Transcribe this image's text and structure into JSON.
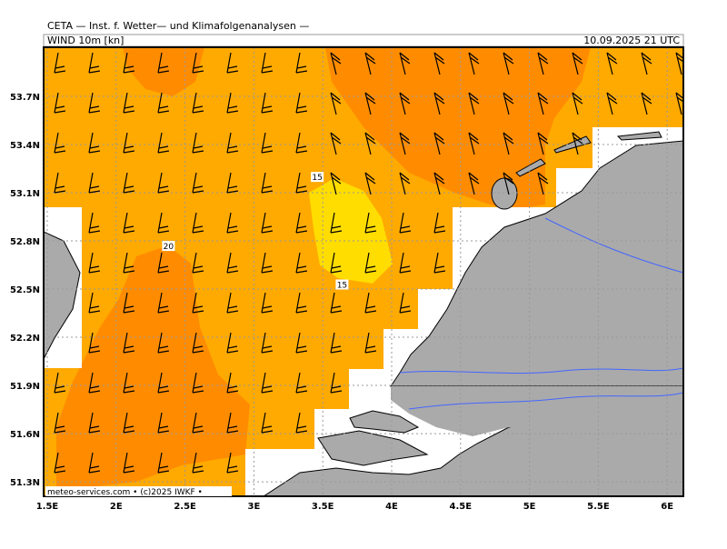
{
  "header": {
    "institute": "CETA — Inst. f. Wetter— und Klimafolgenanalysen —",
    "field": "WIND 10m [kn]",
    "valid_time": "10.09.2025 21 UTC"
  },
  "map": {
    "lon_ticks": [
      {
        "value": 1.5,
        "label": "1.5E"
      },
      {
        "value": 2,
        "label": "2E"
      },
      {
        "value": 2.5,
        "label": "2.5E"
      },
      {
        "value": 3,
        "label": "3E"
      },
      {
        "value": 3.5,
        "label": "3.5E"
      },
      {
        "value": 4,
        "label": "4E"
      },
      {
        "value": 4.5,
        "label": "4.5E"
      },
      {
        "value": 5,
        "label": "5E"
      },
      {
        "value": 5.5,
        "label": "5.5E"
      },
      {
        "value": 6,
        "label": "6E"
      }
    ],
    "lat_ticks": [
      {
        "value": 53.7,
        "label": "53.7N"
      },
      {
        "value": 53.4,
        "label": "53.4N"
      },
      {
        "value": 53.1,
        "label": "53.1N"
      },
      {
        "value": 52.8,
        "label": "52.8N"
      },
      {
        "value": 52.5,
        "label": "52.5N"
      },
      {
        "value": 52.2,
        "label": "52.2N"
      },
      {
        "value": 51.9,
        "label": "51.9N"
      },
      {
        "value": 51.6,
        "label": "51.6N"
      },
      {
        "value": 51.3,
        "label": "51.3N"
      }
    ],
    "contour_labels": [
      {
        "lon": 3.46,
        "lat": 53.19,
        "label": "15"
      },
      {
        "lon": 3.64,
        "lat": 52.52,
        "label": "15"
      },
      {
        "lon": 2.38,
        "lat": 52.76,
        "label": "20"
      }
    ],
    "credit": "meteo-services.com • (c)2025 IWKF •"
  }
}
